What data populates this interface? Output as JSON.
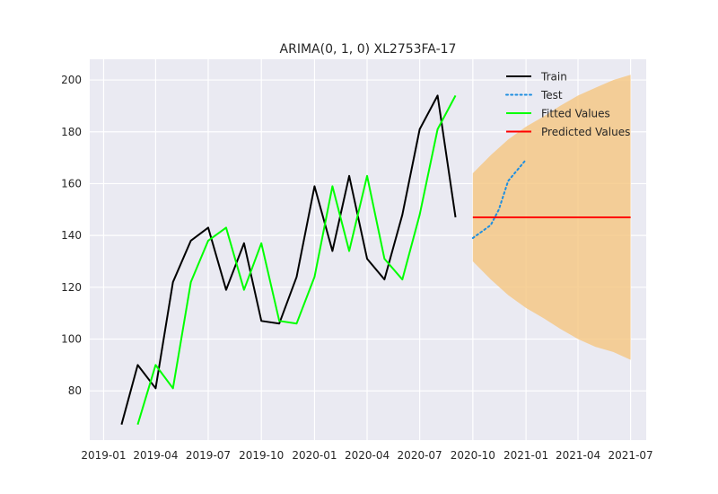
{
  "chart_data": {
    "type": "line",
    "title": "ARIMA(0, 1, 0) XL2753FA-17",
    "xlabel": "",
    "ylabel": "",
    "x_ticks": [
      "2019-01",
      "2019-04",
      "2019-07",
      "2019-10",
      "2020-01",
      "2020-04",
      "2020-07",
      "2020-10",
      "2021-01",
      "2021-04",
      "2021-07"
    ],
    "y_ticks": [
      80,
      100,
      120,
      140,
      160,
      180,
      200
    ],
    "xlim": [
      "2018-12-08",
      "2021-07-28"
    ],
    "ylim": [
      61,
      208
    ],
    "grid": true,
    "legend_position": "top-right",
    "colors": {
      "background": "#eaeaf2",
      "grid": "#ffffff",
      "train": "#000000",
      "test": "#1f8fe0",
      "fitted": "#00ff00",
      "predicted": "#ff0000",
      "confidence": "#f5c580"
    },
    "legend": [
      {
        "label": "Train",
        "series": "train"
      },
      {
        "label": "Test",
        "series": "test"
      },
      {
        "label": "Fitted Values",
        "series": "fitted"
      },
      {
        "label": "Predicted Values",
        "series": "predicted"
      }
    ],
    "series": [
      {
        "name": "Train",
        "key": "train",
        "style": "solid",
        "x": [
          "2019-02-01",
          "2019-03-01",
          "2019-04-01",
          "2019-05-01",
          "2019-06-01",
          "2019-07-01",
          "2019-08-01",
          "2019-09-01",
          "2019-10-01",
          "2019-11-01",
          "2019-12-01",
          "2020-01-01",
          "2020-02-01",
          "2020-03-01",
          "2020-04-01",
          "2020-05-01",
          "2020-06-01",
          "2020-07-01",
          "2020-08-01",
          "2020-09-01"
        ],
        "y": [
          67,
          90,
          81,
          122,
          138,
          143,
          119,
          137,
          107,
          106,
          124,
          159,
          134,
          163,
          131,
          123,
          148,
          181,
          194,
          147
        ]
      },
      {
        "name": "Test",
        "key": "test",
        "style": "dotted",
        "x": [
          "2020-10-01",
          "2020-11-01",
          "2020-11-15",
          "2020-12-01",
          "2020-12-31"
        ],
        "y": [
          139,
          144,
          150,
          161,
          169
        ]
      },
      {
        "name": "Fitted Values",
        "key": "fitted",
        "style": "solid",
        "x": [
          "2019-03-01",
          "2019-04-01",
          "2019-05-01",
          "2019-06-01",
          "2019-07-01",
          "2019-08-01",
          "2019-09-01",
          "2019-10-01",
          "2019-11-01",
          "2019-12-01",
          "2020-01-01",
          "2020-02-01",
          "2020-03-01",
          "2020-04-01",
          "2020-05-01",
          "2020-06-01",
          "2020-07-01",
          "2020-08-01",
          "2020-09-01"
        ],
        "y": [
          67,
          90,
          81,
          122,
          138,
          143,
          119,
          137,
          107,
          106,
          124,
          159,
          134,
          163,
          131,
          123,
          148,
          181,
          194
        ]
      },
      {
        "name": "Predicted Values",
        "key": "predicted",
        "style": "solid",
        "x": [
          "2020-10-01",
          "2021-07-01"
        ],
        "y": [
          147,
          147
        ]
      }
    ],
    "confidence_band": {
      "x": [
        "2020-10-01",
        "2020-11-01",
        "2020-12-01",
        "2021-01-01",
        "2021-02-01",
        "2021-03-01",
        "2021-04-01",
        "2021-05-01",
        "2021-06-01",
        "2021-07-01"
      ],
      "upper": [
        164,
        171,
        177,
        182,
        186,
        190,
        194,
        197,
        200,
        202
      ],
      "lower": [
        130,
        123,
        117,
        112,
        108,
        104,
        100,
        97,
        95,
        92
      ]
    }
  }
}
